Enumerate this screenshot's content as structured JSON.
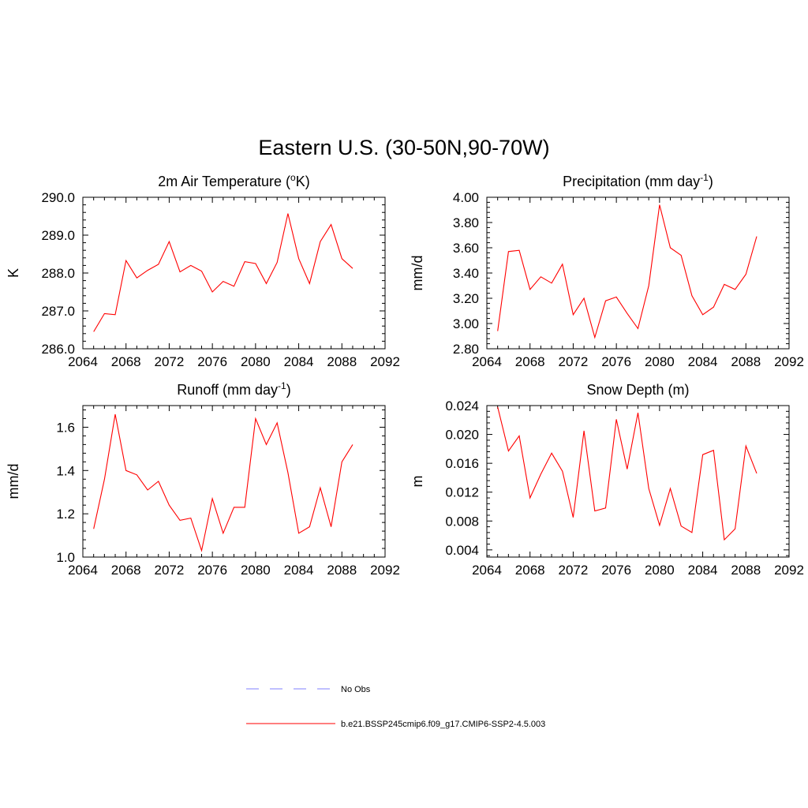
{
  "title": "Eastern U.S. (30-50N,90-70W)",
  "legend": [
    {
      "label": "No Obs",
      "color": "#9999ff",
      "style": "dashed"
    },
    {
      "label": "b.e21.BSSP245cmip6.f09_g17.CMIP6-SSP2-4.5.003",
      "color": "#ff3333",
      "style": "solid"
    }
  ],
  "chart_data": [
    {
      "type": "line",
      "title": "2m Air Temperature (°K)",
      "title_parts": {
        "before": "2m Air Temperature (",
        "sup": "o",
        "after": "K)"
      },
      "xlabel": "",
      "ylabel": "K",
      "xlim": [
        2064,
        2092
      ],
      "ylim": [
        286.0,
        290.0
      ],
      "xticks": [
        "2064",
        "2068",
        "2072",
        "2076",
        "2080",
        "2084",
        "2088",
        "2092"
      ],
      "yticks": [
        "286.0",
        "287.0",
        "288.0",
        "289.0",
        "290.0"
      ],
      "series": [
        {
          "color": "#ff0000",
          "x": [
            2065,
            2066,
            2067,
            2068,
            2069,
            2070,
            2071,
            2072,
            2073,
            2074,
            2075,
            2076,
            2077,
            2078,
            2079,
            2080,
            2081,
            2082,
            2083,
            2084,
            2085,
            2086,
            2087,
            2088,
            2089
          ],
          "y": [
            286.45,
            286.93,
            286.9,
            288.33,
            287.87,
            288.07,
            288.23,
            288.83,
            288.03,
            288.2,
            288.05,
            287.5,
            287.78,
            287.65,
            288.3,
            288.25,
            287.72,
            288.28,
            289.57,
            288.38,
            287.72,
            288.83,
            289.28,
            288.38,
            288.12
          ]
        }
      ]
    },
    {
      "type": "line",
      "title": "Precipitation (mm day-1)",
      "title_parts": {
        "before": "Precipitation (mm day",
        "sup": "-1",
        "after": ")"
      },
      "xlabel": "",
      "ylabel": "mm/d",
      "xlim": [
        2064,
        2092
      ],
      "ylim": [
        2.8,
        4.0
      ],
      "xticks": [
        "2064",
        "2068",
        "2072",
        "2076",
        "2080",
        "2084",
        "2088",
        "2092"
      ],
      "yticks": [
        "2.80",
        "3.00",
        "3.20",
        "3.40",
        "3.60",
        "3.80",
        "4.00"
      ],
      "series": [
        {
          "color": "#ff0000",
          "x": [
            2065,
            2066,
            2067,
            2068,
            2069,
            2070,
            2071,
            2072,
            2073,
            2074,
            2075,
            2076,
            2077,
            2078,
            2079,
            2080,
            2081,
            2082,
            2083,
            2084,
            2085,
            2086,
            2087,
            2088,
            2089
          ],
          "y": [
            2.94,
            3.57,
            3.58,
            3.27,
            3.37,
            3.32,
            3.47,
            3.07,
            3.2,
            2.89,
            3.18,
            3.21,
            3.08,
            2.96,
            3.3,
            3.94,
            3.6,
            3.54,
            3.22,
            3.07,
            3.13,
            3.31,
            3.27,
            3.39,
            3.69
          ]
        }
      ]
    },
    {
      "type": "line",
      "title": "Runoff (mm day-1)",
      "title_parts": {
        "before": "Runoff (mm day",
        "sup": "-1",
        "after": ")"
      },
      "xlabel": "",
      "ylabel": "mm/d",
      "xlim": [
        2064,
        2092
      ],
      "ylim": [
        1.0,
        1.7
      ],
      "xticks": [
        "2064",
        "2068",
        "2072",
        "2076",
        "2080",
        "2084",
        "2088",
        "2092"
      ],
      "yticks": [
        "1.0",
        "1.2",
        "1.4",
        "1.6"
      ],
      "series": [
        {
          "color": "#ff0000",
          "x": [
            2065,
            2066,
            2067,
            2068,
            2069,
            2070,
            2071,
            2072,
            2073,
            2074,
            2075,
            2076,
            2077,
            2078,
            2079,
            2080,
            2081,
            2082,
            2083,
            2084,
            2085,
            2086,
            2087,
            2088,
            2089
          ],
          "y": [
            1.13,
            1.36,
            1.66,
            1.4,
            1.38,
            1.31,
            1.35,
            1.24,
            1.17,
            1.18,
            1.03,
            1.27,
            1.11,
            1.23,
            1.23,
            1.64,
            1.52,
            1.62,
            1.39,
            1.11,
            1.14,
            1.32,
            1.14,
            1.44,
            1.52
          ]
        }
      ]
    },
    {
      "type": "line",
      "title": "Snow Depth (m)",
      "title_parts": {
        "before": "Snow Depth (m)",
        "sup": "",
        "after": ""
      },
      "xlabel": "",
      "ylabel": "m",
      "xlim": [
        2064,
        2092
      ],
      "ylim": [
        0.003,
        0.024
      ],
      "xticks": [
        "2064",
        "2068",
        "2072",
        "2076",
        "2080",
        "2084",
        "2088",
        "2092"
      ],
      "yticks": [
        "0.004",
        "0.008",
        "0.012",
        "0.016",
        "0.020",
        "0.024"
      ],
      "series": [
        {
          "color": "#ff0000",
          "x": [
            2065,
            2066,
            2067,
            2068,
            2069,
            2070,
            2071,
            2072,
            2073,
            2074,
            2075,
            2076,
            2077,
            2078,
            2079,
            2080,
            2081,
            2082,
            2083,
            2084,
            2085,
            2086,
            2087,
            2088,
            2089
          ],
          "y": [
            0.0238,
            0.0177,
            0.0198,
            0.0112,
            0.0145,
            0.0174,
            0.0149,
            0.0085,
            0.0205,
            0.0094,
            0.0098,
            0.0221,
            0.0152,
            0.023,
            0.0125,
            0.0074,
            0.0125,
            0.0073,
            0.0064,
            0.0172,
            0.0178,
            0.0054,
            0.0069,
            0.0184,
            0.0146
          ]
        }
      ]
    }
  ]
}
